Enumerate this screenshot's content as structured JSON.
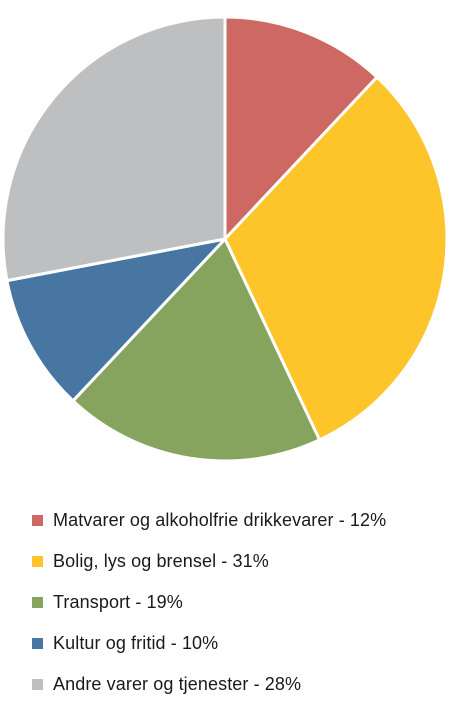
{
  "chart_data": {
    "type": "pie",
    "title": "",
    "legend_position": "bottom",
    "start_angle_deg": 0,
    "direction": "clockwise",
    "slices": [
      {
        "label": "Matvarer og alkoholfrie drikkevarer - 12%",
        "value": 12,
        "color": "#cd6863"
      },
      {
        "label": "Bolig, lys og brensel - 31%",
        "value": 31,
        "color": "#fdc52a"
      },
      {
        "label": "Transport - 19%",
        "value": 19,
        "color": "#86a45e"
      },
      {
        "label": "Kultur og fritid - 10%",
        "value": 10,
        "color": "#4776a3"
      },
      {
        "label": "Andre varer og tjenester - 28%",
        "value": 28,
        "color": "#bebfc1"
      }
    ]
  }
}
